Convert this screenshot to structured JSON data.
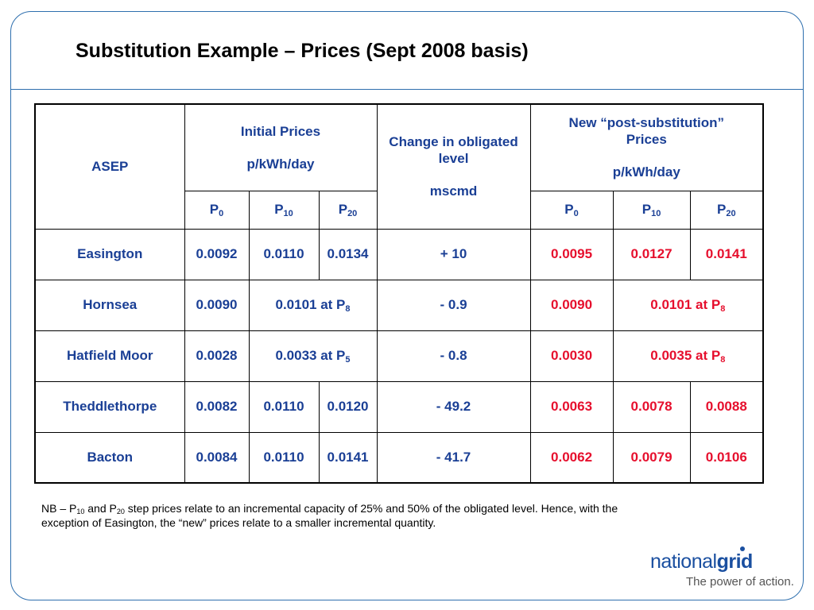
{
  "title": "Substitution Example – Prices (Sept 2008 basis)",
  "table": {
    "asep_header": "ASEP",
    "initial": {
      "line1": "Initial Prices",
      "line2": "p/kWh/day"
    },
    "change": {
      "line1": "Change in obligated",
      "line2": "level",
      "line3": "mscmd"
    },
    "new_prices": {
      "line1": "New “post-substitution”",
      "line2": "Prices",
      "line3": "p/kWh/day"
    },
    "sub_letter": "P",
    "sub_indices": [
      "0",
      "10",
      "20"
    ],
    "rows": [
      {
        "asep": "Easington",
        "initial": [
          "0.0092",
          "0.0110",
          "0.0134"
        ],
        "change": "+ 10",
        "new": [
          "0.0095",
          "0.0127",
          "0.0141"
        ]
      },
      {
        "asep": "Hornsea",
        "initial_p0": "0.0090",
        "initial_merged": "0.0101 at P",
        "initial_merged_sub": "8",
        "change": "- 0.9",
        "new_p0": "0.0090",
        "new_merged": "0.0101 at P",
        "new_merged_sub": "8"
      },
      {
        "asep": "Hatfield Moor",
        "initial_p0": "0.0028",
        "initial_merged": "0.0033 at P",
        "initial_merged_sub": "5",
        "change": "- 0.8",
        "new_p0": "0.0030",
        "new_merged": "0.0035 at P",
        "new_merged_sub": "8"
      },
      {
        "asep": "Theddlethorpe",
        "initial": [
          "0.0082",
          "0.0110",
          "0.0120"
        ],
        "change": "- 49.2",
        "new": [
          "0.0063",
          "0.0078",
          "0.0088"
        ]
      },
      {
        "asep": "Bacton",
        "initial": [
          "0.0084",
          "0.0110",
          "0.0141"
        ],
        "change": "- 41.7",
        "new": [
          "0.0062",
          "0.0079",
          "0.0106"
        ]
      }
    ]
  },
  "note": {
    "part1": "NB – P",
    "sub1": "10",
    "part2": " and P",
    "sub2": "20",
    "part3": " step prices relate to an incremental capacity of 25% and 50% of the obligated level. Hence, with the exception of Easington, the “new” prices relate to a smaller incremental quantity."
  },
  "logo": {
    "word1": "national",
    "word2": "grid",
    "tagline": "The power of action."
  },
  "colors": {
    "frame": "#2e6fae",
    "header_text": "#1a3f95",
    "new_price_text": "#e60f2d",
    "logo": "#1a4fa0"
  }
}
